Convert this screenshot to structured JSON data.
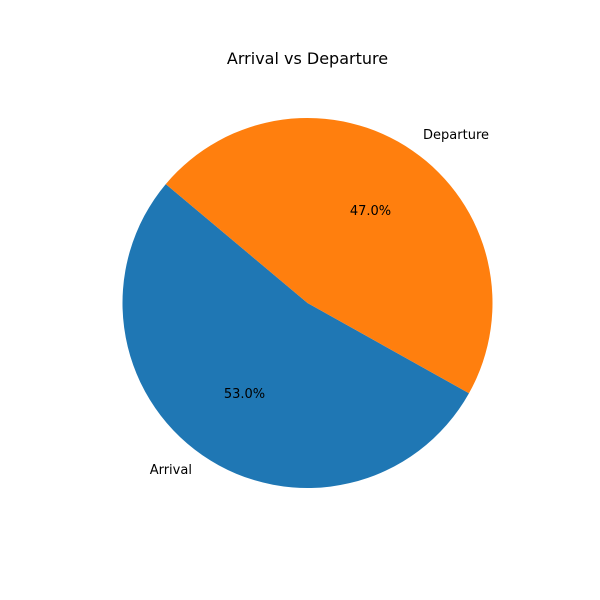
{
  "chart_data": {
    "type": "pie",
    "title": "Arrival vs Departure",
    "categories": [
      "Arrival",
      "Departure"
    ],
    "values": [
      53.0,
      47.0
    ],
    "value_labels": [
      "53.0%",
      "47.0%"
    ],
    "colors": [
      "#1f77b4",
      "#ff7f0e"
    ],
    "start_angle_deg": 140,
    "direction": "counterclockwise",
    "legend": "none"
  }
}
